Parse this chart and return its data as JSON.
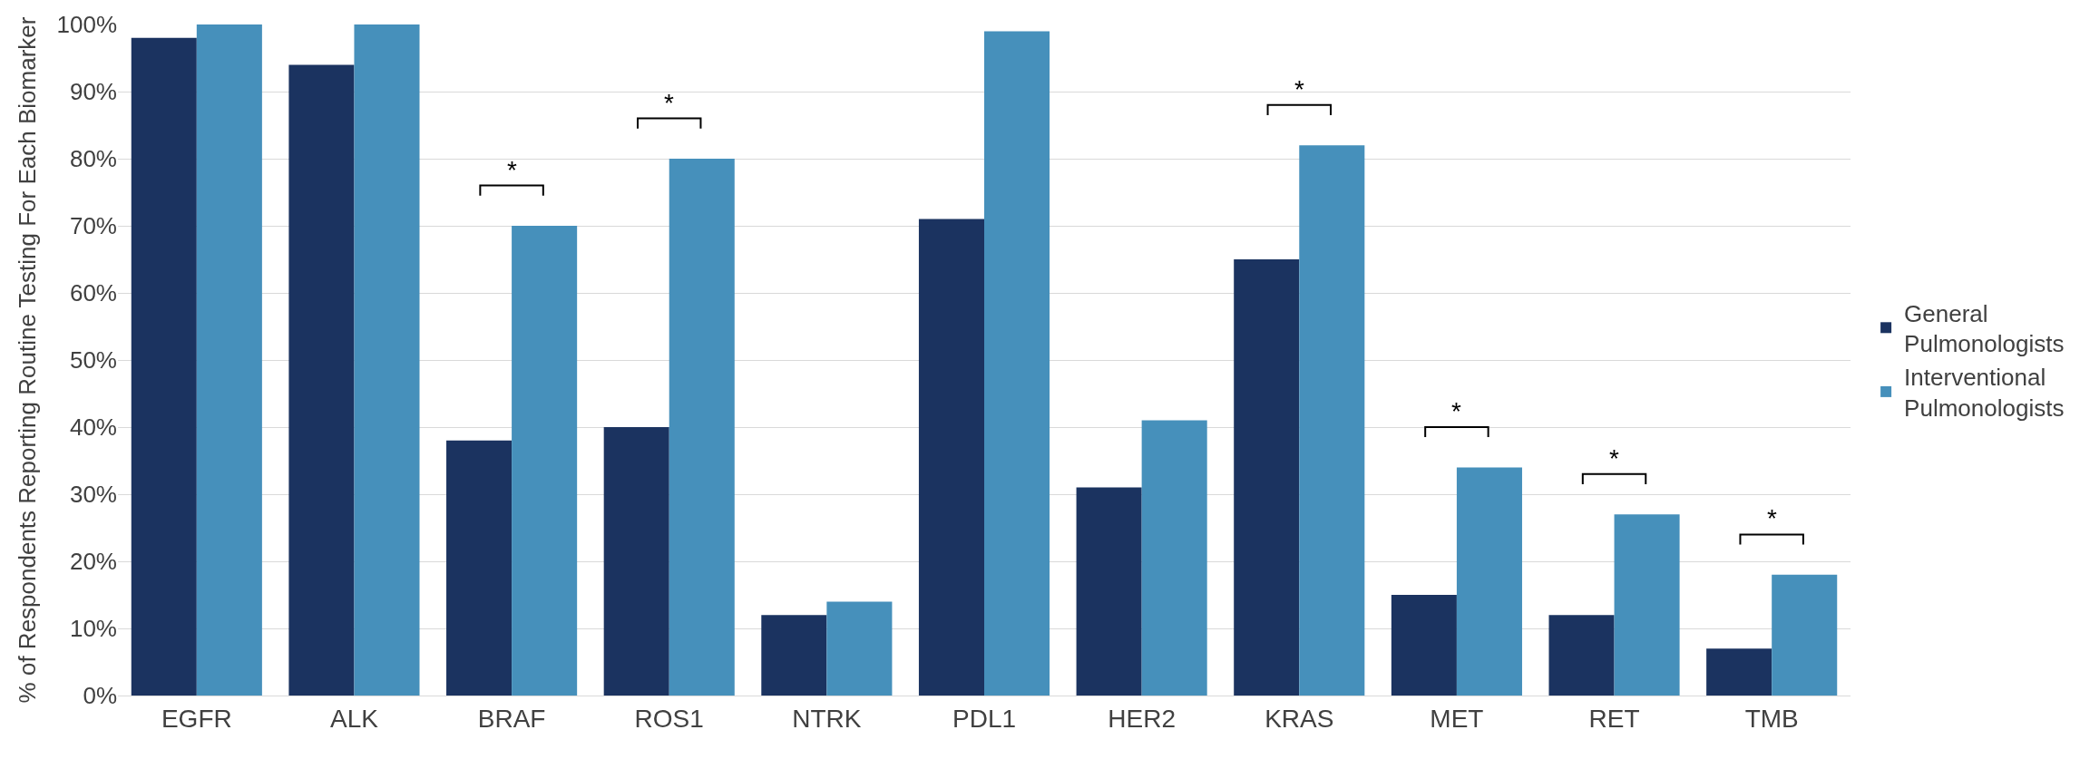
{
  "chart_data": {
    "type": "bar",
    "ylabel": "% of Respondents Reporting Routine Testing For Each Biomarker",
    "categories": [
      "EGFR",
      "ALK",
      "BRAF",
      "ROS1",
      "NTRK",
      "PDL1",
      "HER2",
      "KRAS",
      "MET",
      "RET",
      "TMB"
    ],
    "series": [
      {
        "name": "General Pulmonologists",
        "color": "#1b3360",
        "values": [
          98,
          94,
          38,
          40,
          12,
          71,
          31,
          65,
          15,
          12,
          7
        ]
      },
      {
        "name": "Interventional Pulmonologists",
        "color": "#4690bb",
        "values": [
          100,
          100,
          70,
          80,
          14,
          99,
          41,
          82,
          34,
          27,
          18
        ]
      }
    ],
    "ylim": [
      0,
      100
    ],
    "yticks": [
      {
        "value": 0,
        "label": "0%"
      },
      {
        "value": 10,
        "label": "10%"
      },
      {
        "value": 20,
        "label": "20%"
      },
      {
        "value": 30,
        "label": "30%"
      },
      {
        "value": 40,
        "label": "40%"
      },
      {
        "value": 50,
        "label": "50%"
      },
      {
        "value": 60,
        "label": "60%"
      },
      {
        "value": 70,
        "label": "70%"
      },
      {
        "value": 80,
        "label": "80%"
      },
      {
        "value": 90,
        "label": "90%"
      },
      {
        "value": 100,
        "label": "100%"
      }
    ],
    "annotations": [
      {
        "text": "*",
        "x": "BRAF",
        "y": 70
      },
      {
        "text": "*",
        "x": "ROS1",
        "y": 80
      },
      {
        "text": "*",
        "x": "KRAS",
        "y": 82
      },
      {
        "text": "*",
        "x": "MET",
        "y": 34
      },
      {
        "text": "*",
        "x": "RET",
        "y": 27
      },
      {
        "text": "*",
        "x": "TMB",
        "y": 18
      }
    ],
    "grid": "y",
    "legend": "right"
  }
}
